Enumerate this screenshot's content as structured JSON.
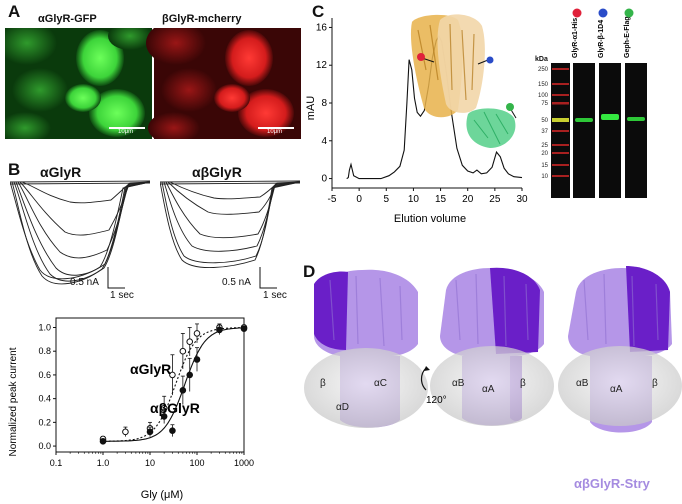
{
  "panels": {
    "a": "A",
    "b": "B",
    "c": "C",
    "d": "D"
  },
  "panel_a": {
    "left_title": "αGlyR-GFP",
    "right_title": "βGlyR-mcherry",
    "scale_left": "10μm",
    "scale_right": "10μm",
    "colors": {
      "gfp": "#22c02a",
      "mcherry": "#d42020"
    }
  },
  "panel_b": {
    "trace_left_title": "αGlyR",
    "trace_right_title": "αβGlyR",
    "scale_current_left": "0.5 nA",
    "scale_time_left": "1 sec",
    "scale_current_right": "0.5 nA",
    "scale_time_right": "1 sec"
  },
  "panel_c": {
    "blot_marker_label": "kDa",
    "blot_lane_labels": [
      "GlyR-α1-His",
      "GlyR-β-1D4",
      "Geph-E-Flag"
    ],
    "lane_dot_colors": [
      "#e0213a",
      "#2a4cc8",
      "#34b44a"
    ],
    "blot_markers": [
      "250",
      "150",
      "100",
      "75",
      "50",
      "37",
      "25",
      "20",
      "15",
      "10"
    ]
  },
  "panel_d": {
    "label_120": "120°",
    "subunit_labels_1": [
      "β",
      "αD",
      "αC"
    ],
    "subunit_labels_2": [
      "αB",
      "αA",
      "β"
    ],
    "subunit_labels_3": [
      "αB",
      "αA",
      "β"
    ],
    "title": "αβGlyR-Stry",
    "colors": {
      "light": "#b596e8",
      "dark": "#6a1fc8",
      "title": "#a58be0"
    }
  },
  "chart_data": [
    {
      "type": "line",
      "title": "",
      "xlabel": "Elution volume",
      "ylabel": "mAU",
      "xlim": [
        -5,
        30
      ],
      "ylim": [
        -1,
        17
      ],
      "xticks": [
        -5,
        0,
        5,
        10,
        15,
        20,
        25,
        30
      ],
      "yticks": [
        0,
        4,
        8,
        12,
        16
      ],
      "series": [
        {
          "x": [
            -2.3,
            -2,
            -1.8,
            -1.5,
            -1,
            0,
            2,
            4,
            5.5,
            6.5,
            7.5,
            8.3,
            8.8,
            9.2,
            9.7,
            10.2,
            10.7,
            11.3,
            12,
            12.8,
            13.5,
            14.2,
            14.7,
            15.2,
            16,
            17,
            18,
            19,
            20,
            21,
            21.7,
            22.5,
            23.5,
            24.5,
            25.3,
            26,
            26.7,
            27.5,
            28.5,
            30
          ],
          "y": [
            0,
            0.1,
            0.9,
            1.5,
            0.3,
            0,
            0,
            0,
            0.3,
            0.7,
            1.3,
            3,
            8,
            12.6,
            11.5,
            8.5,
            7,
            6.6,
            7.2,
            9.8,
            12.8,
            14.6,
            15.1,
            14.5,
            11.5,
            7,
            3.2,
            1.4,
            0.8,
            0.6,
            0.9,
            0.5,
            0.6,
            1.2,
            2.8,
            2.3,
            1.1,
            0.5,
            0.2,
            0.1
          ]
        }
      ]
    },
    {
      "type": "scatter",
      "title": "",
      "xlabel": "Gly (μM)",
      "ylabel": "Normalized peak current",
      "xscale": "log",
      "xlim": [
        0.1,
        1000
      ],
      "ylim": [
        -0.05,
        1.08
      ],
      "xticks": [
        0.1,
        1,
        10,
        100,
        1000
      ],
      "xtick_labels": [
        "0.1",
        "1.0",
        "10",
        "100",
        "1000"
      ],
      "yticks": [
        0,
        0.2,
        0.4,
        0.6,
        0.8,
        1.0
      ],
      "ytick_labels": [
        "0.0",
        "0.2",
        "0.4",
        "0.6",
        "0.8",
        "1.0"
      ],
      "series": [
        {
          "name": "αGlyR",
          "marker": "open",
          "x": [
            1,
            3,
            10,
            20,
            30,
            50,
            70,
            100,
            300,
            1000
          ],
          "y": [
            0.06,
            0.12,
            0.15,
            0.32,
            0.6,
            0.8,
            0.88,
            0.95,
            1.0,
            1.0
          ],
          "err": [
            0.02,
            0.04,
            0.05,
            0.1,
            0.17,
            0.15,
            0.12,
            0.08,
            0.03,
            0.02
          ],
          "ec50": 35,
          "hill": 2.0
        },
        {
          "name": "αβGlyR",
          "marker": "filled",
          "x": [
            1,
            10,
            20,
            30,
            50,
            70,
            100,
            300,
            1000
          ],
          "y": [
            0.04,
            0.12,
            0.25,
            0.13,
            0.47,
            0.6,
            0.73,
            0.98,
            0.99
          ],
          "err": [
            0.02,
            0.04,
            0.06,
            0.05,
            0.12,
            0.14,
            0.1,
            0.04,
            0.02
          ],
          "ec50": 55,
          "hill": 2.0
        }
      ],
      "annotations": [
        "αGlyR",
        "αβGlyR"
      ]
    }
  ]
}
